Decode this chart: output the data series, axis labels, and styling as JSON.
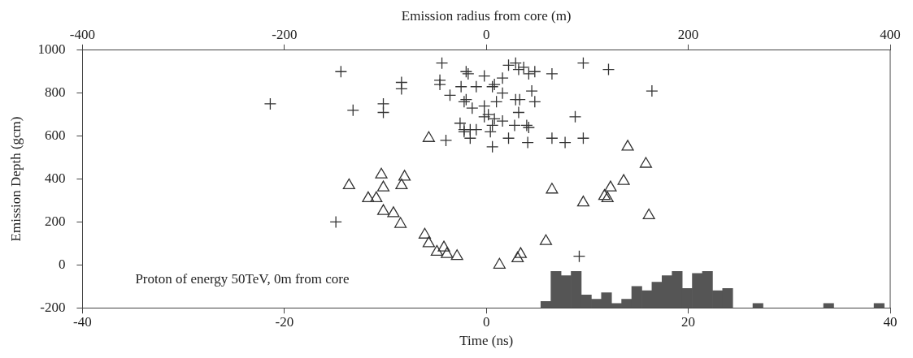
{
  "chart_data": {
    "type": "scatter",
    "xlabel": "Time (ns)",
    "ylabel": "Emission Depth (gcm)",
    "x2label": "Emission radius from core (m)",
    "xlim": [
      -40,
      40
    ],
    "xticks": [
      -40,
      -20,
      0,
      20,
      40
    ],
    "x2lim": [
      -400,
      400
    ],
    "x2ticks": [
      -400,
      -200,
      0,
      200,
      400
    ],
    "ylim": [
      -200,
      1000
    ],
    "yticks": [
      -200,
      0,
      200,
      400,
      600,
      800,
      1000
    ],
    "grid": false,
    "legend": false,
    "annotations": [
      "Proton of energy 50TeV, 0m from core"
    ],
    "series": [
      {
        "marker": "cross",
        "color": "#333333",
        "x": [
          -21.4,
          -14.4,
          -13.2,
          -10.2,
          -10.2,
          -8.4,
          -8.4,
          -14.9,
          -4.4,
          -4.6,
          -4.6,
          -4.0,
          -2.5,
          -3.6,
          -2.2,
          -2.6,
          -2.2,
          -2.0,
          -1.8,
          -0.2,
          -1.0,
          0.6,
          0.8,
          1.6,
          2.2,
          2.9,
          3.2,
          3.7,
          4.2,
          4.8,
          6.5,
          9.6,
          12.1,
          -2.0,
          -1.4,
          -0.2,
          1.0,
          1.6,
          2.9,
          3.3,
          4.5,
          4.8,
          3.2,
          8.8,
          -0.2,
          0.2,
          0.8,
          1.6,
          2.8,
          4.0,
          4.2,
          -2.2,
          -1.6,
          -1.0,
          0.6,
          0.4,
          -1.6,
          2.2,
          4.1,
          0.6,
          6.5,
          7.8,
          9.6,
          16.4,
          9.2
        ],
        "values": [
          750,
          900,
          720,
          750,
          710,
          850,
          820,
          200,
          940,
          860,
          840,
          580,
          830,
          790,
          760,
          660,
          620,
          900,
          890,
          880,
          830,
          830,
          840,
          870,
          930,
          940,
          910,
          920,
          890,
          900,
          890,
          940,
          910,
          770,
          730,
          740,
          760,
          800,
          770,
          770,
          810,
          760,
          710,
          690,
          690,
          700,
          680,
          670,
          650,
          650,
          640,
          630,
          630,
          630,
          650,
          620,
          590,
          590,
          570,
          550,
          590,
          570,
          590,
          810,
          40
        ]
      },
      {
        "marker": "triangle",
        "color": "#333333",
        "x": [
          -5.7,
          -13.6,
          -10.4,
          -8.1,
          -8.4,
          -10.2,
          -11.7,
          -10.9,
          -10.2,
          -9.2,
          -8.5,
          -6.1,
          -5.7,
          -4.9,
          -4.2,
          -3.9,
          -2.9,
          1.3,
          3.1,
          3.4,
          5.9,
          6.5,
          9.6,
          11.7,
          12.0,
          12.3,
          13.6,
          14.0,
          15.8,
          16.1
        ],
        "values": [
          590,
          370,
          420,
          410,
          370,
          360,
          310,
          310,
          250,
          240,
          190,
          140,
          100,
          60,
          80,
          50,
          40,
          0,
          30,
          50,
          110,
          350,
          290,
          320,
          310,
          360,
          390,
          550,
          470,
          230
        ]
      },
      {
        "type": "bar",
        "color": "#555555",
        "x": [
          5.9,
          6.9,
          7.9,
          8.9,
          9.9,
          10.9,
          11.9,
          12.9,
          13.9,
          14.9,
          15.9,
          16.9,
          17.9,
          18.9,
          19.9,
          20.9,
          21.9,
          22.9,
          23.9,
          26.9,
          33.9,
          38.9
        ],
        "base": [
          -200,
          -200,
          -200,
          -200,
          -200,
          -200,
          -200,
          -200,
          -200,
          -200,
          -200,
          -200,
          -200,
          -200,
          -200,
          -200,
          -200,
          -200,
          -200,
          -200,
          -200,
          -200
        ],
        "values": [
          30,
          170,
          150,
          170,
          60,
          40,
          70,
          20,
          40,
          100,
          80,
          120,
          150,
          170,
          90,
          160,
          170,
          80,
          90,
          20,
          20,
          20
        ]
      }
    ]
  }
}
